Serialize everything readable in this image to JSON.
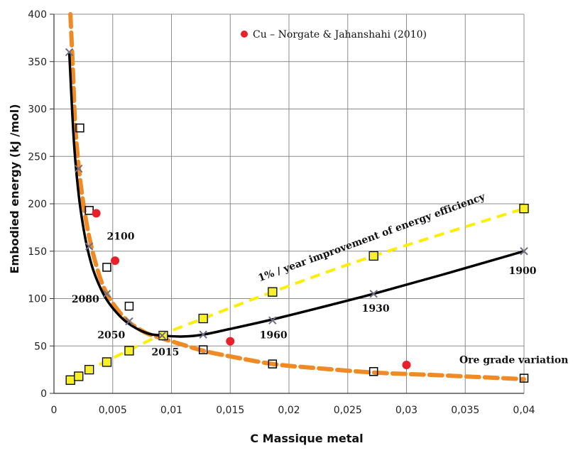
{
  "chart_data": {
    "type": "scatter",
    "xlabel": "C Massique metal",
    "ylabel": "Embodied energy (kJ /mol)",
    "xlim": [
      0,
      0.04
    ],
    "ylim": [
      0,
      400
    ],
    "x_ticks": [
      "0",
      "0,005",
      "0,01",
      "0,015",
      "0,02",
      "0,025",
      "0,03",
      "0,035",
      "0,04"
    ],
    "y_ticks": [
      "0",
      "50",
      "100",
      "150",
      "200",
      "250",
      "300",
      "350",
      "400"
    ],
    "grid": true,
    "legend": {
      "label": "Cu – Norgate & Jahanshahi (2010)",
      "color": "#e8202a"
    },
    "colors": {
      "orange": "#f08a24",
      "yellow": "#ffee00",
      "black": "#000000",
      "marker_fill": "#f7f02a",
      "cross": "#6e6e85"
    },
    "series": [
      {
        "style": "orange-dashed",
        "x": [
          0.0014,
          0.0016,
          0.0018,
          0.0021,
          0.0025,
          0.003,
          0.0036,
          0.0043,
          0.0053,
          0.0064,
          0.0078,
          0.0092,
          0.0105,
          0.0127,
          0.015,
          0.0186,
          0.022,
          0.0272,
          0.033,
          0.04
        ],
        "y": [
          400,
          345,
          285,
          240,
          200,
          165,
          135,
          110,
          90,
          75,
          64,
          58,
          53,
          45,
          39,
          31,
          27,
          22,
          19,
          15
        ]
      },
      {
        "style": "black-solid",
        "x": [
          0.0013,
          0.0017,
          0.0021,
          0.0025,
          0.0029,
          0.0034,
          0.0042,
          0.005,
          0.0062,
          0.0078,
          0.0092,
          0.011,
          0.0127,
          0.015,
          0.0186,
          0.0225,
          0.0272,
          0.033,
          0.04
        ],
        "y": [
          360,
          265,
          210,
          175,
          150,
          128,
          105,
          90,
          75,
          64,
          61,
          60,
          62,
          68,
          78,
          90,
          105,
          125,
          150
        ]
      },
      {
        "style": "yellow-dashed",
        "x": [
          0.0014,
          0.002,
          0.003,
          0.0043,
          0.0063,
          0.0092,
          0.0127,
          0.0186,
          0.0272,
          0.04
        ],
        "y": [
          14,
          18,
          25,
          33,
          45,
          62,
          79,
          107,
          145,
          195
        ]
      },
      {
        "style": "open-squares",
        "x": [
          0.0022,
          0.003,
          0.0045,
          0.0064,
          0.0127,
          0.0186,
          0.0272,
          0.04
        ],
        "y": [
          280,
          193,
          133,
          92,
          46,
          31,
          23,
          16
        ]
      },
      {
        "style": "filled-squares",
        "x": [
          0.0014,
          0.0021,
          0.003,
          0.0045,
          0.0064,
          0.0093,
          0.0127,
          0.0186,
          0.0272,
          0.04
        ],
        "y": [
          14,
          18,
          25,
          33,
          45,
          61,
          79,
          107,
          145,
          195
        ]
      },
      {
        "style": "crosses",
        "x": [
          0.0013,
          0.0021,
          0.003,
          0.0045,
          0.0064,
          0.0092,
          0.0127,
          0.0186,
          0.0272,
          0.04
        ],
        "y": [
          360,
          237,
          155,
          105,
          76,
          61,
          62,
          77,
          105,
          150
        ]
      },
      {
        "style": "red-dots",
        "x": [
          0.0036,
          0.0052,
          0.015,
          0.03
        ],
        "y": [
          190,
          140,
          55,
          30
        ]
      }
    ],
    "annotations": [
      {
        "text": "2100",
        "x": 0.0045,
        "y": 162
      },
      {
        "text": "2080",
        "x": 0.0015,
        "y": 96
      },
      {
        "text": "2050",
        "x": 0.0037,
        "y": 58
      },
      {
        "text": "2015",
        "x": 0.0083,
        "y": 40
      },
      {
        "text": "1960",
        "x": 0.0175,
        "y": 58
      },
      {
        "text": "1930",
        "x": 0.0262,
        "y": 86
      },
      {
        "text": "1900",
        "x": 0.0387,
        "y": 126
      },
      {
        "text": "Ore grade variation",
        "x": 0.0345,
        "y": 32
      }
    ],
    "diagonal_label": {
      "text": "1% / year improvement of energy efficiency",
      "x": 0.0175,
      "y": 118
    }
  }
}
